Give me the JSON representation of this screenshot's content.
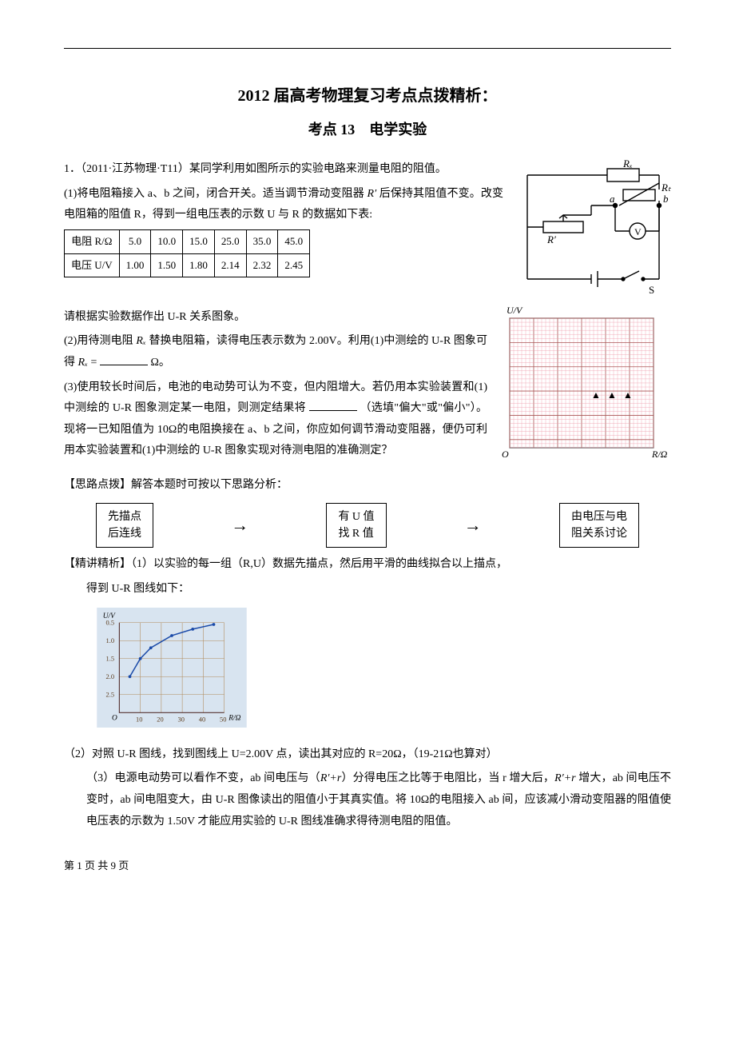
{
  "header": {
    "title": "2012 届高考物理复习考点点拨精析：",
    "subtitle": "考点 13　电学实验"
  },
  "q1": {
    "stem": "1．（2011·江苏物理·T11）某同学利用如图所示的实验电路来测量电阻的阻值。",
    "part1a": "(1)将电阻箱接入 a、b 之间，闭合开关。适当调节滑动变阻器 ",
    "Rprime1": "R′",
    "part1b": " 后保持其阻值不变。改变电阻箱的阻值 R，得到一组电压表的示数 U 与 R 的数据如下表:",
    "table": {
      "r_label": "电阻 R/Ω",
      "u_label": "电压 U/V",
      "r": [
        "5.0",
        "10.0",
        "15.0",
        "25.0",
        "35.0",
        "45.0"
      ],
      "u": [
        "1.00",
        "1.50",
        "1.80",
        "2.14",
        "2.32",
        "2.45"
      ]
    },
    "after_table": "请根据实验数据作出 U-R 关系图象。",
    "part2a": "(2)用待测电阻 ",
    "Rx": "Rₓ",
    "part2b": " 替换电阻箱，读得电压表示数为 2.00V。利用(1)中测绘的 U-R 图象可得 ",
    "part2c": " = ",
    "part2d": " Ω。",
    "part3": "(3)使用较长时间后，电池的电动势可认为不变，但内阻增大。若仍用本实验装置和(1)中测绘的 U-R 图象测定某一电阻，则测定结果将",
    "part3b": "（选填\"偏大\"或\"偏小\"）。现将一已知阻值为 10Ω的电阻换接在 a、b 之间，你应如何调节滑动变阻器，便仍可利用本实验装置和(1)中测绘的 U-R 图象实现对待测电阻的准确测定？",
    "hint_title": "【思路点拨】解答本题时可按以下思路分析：",
    "flow": {
      "b1l1": "先描点",
      "b1l2": "后连线",
      "b2l1": "有 U 值",
      "b2l2": "找 R 值",
      "b3l1": "由电压与电",
      "b3l2": "阻关系讨论"
    },
    "ans_title": "【精讲精析】（1）以实验的每一组（R,U）数据先描点，然后用平滑的曲线拟合以上描点，",
    "ans_1b": "得到 U-R 图线如下：",
    "ans_2": "（2）对照 U-R 图线，找到图线上 U=2.00V 点，读出其对应的 R=20Ω，（19-21Ω也算对）",
    "ans_3a": "（3）电源电动势可以看作不变，ab 间电压与（",
    "Rpr": "R′+r",
    "ans_3b": "）分得电压之比等于电阻比，当 r 增大后，",
    "ans_3c": " 增大，ab 间电压不变时，ab 间电阻变大，由 U-R 图像读出的阻值小于其真实值。将 10Ω的电阻接入 ab 间，应该减小滑动变阻器的阻值使电压表的示数为 1.50V 才能应用实验的 U-R 图线准确求得待测电阻的阻值。"
  },
  "circuit": {
    "Rx": "Rₓ",
    "Rt": "Rₜ",
    "a": "a",
    "b": "b",
    "Rprime": "R′",
    "V": "V",
    "S": "S"
  },
  "blank_grid": {
    "ylabel": "U/V",
    "xlabel": "R/Ω",
    "origin": "O"
  },
  "result_chart": {
    "ylabel": "U/V",
    "xlabel": "R/Ω",
    "origin": "O",
    "yticks": [
      "2.5",
      "2.0",
      "1.5",
      "1.0",
      "0.5"
    ],
    "xticks": [
      "10",
      "20",
      "30",
      "40",
      "50"
    ],
    "data_x": [
      5,
      10,
      15,
      25,
      35,
      45
    ],
    "data_y": [
      1.0,
      1.5,
      1.8,
      2.14,
      2.32,
      2.45
    ],
    "curve_color": "#1a4aa8",
    "grid_color": "#b08a5a",
    "bg_color": "#d8e4f0"
  },
  "footer": "第 1 页 共 9 页"
}
